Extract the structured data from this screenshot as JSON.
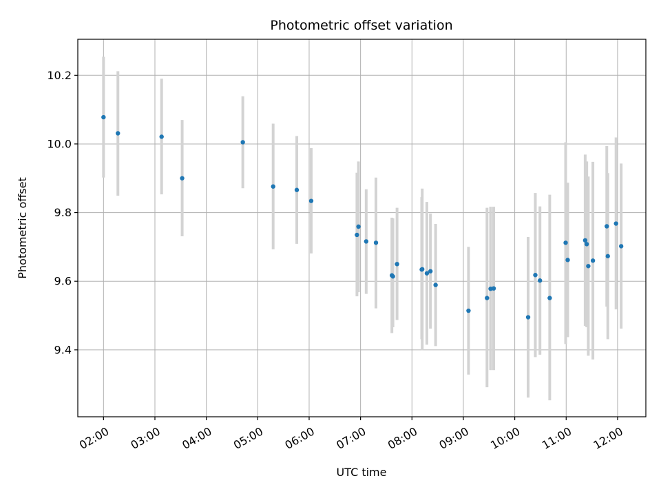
{
  "chart_data": {
    "type": "scatter",
    "title": "Photometric offset variation",
    "xlabel": "UTC time",
    "ylabel": "Photometric offset",
    "x_unit": "hours (UTC)",
    "xlim": [
      1.5,
      12.55
    ],
    "ylim": [
      9.205,
      10.305
    ],
    "x_ticks": [
      2,
      3,
      4,
      5,
      6,
      7,
      8,
      9,
      10,
      11,
      12
    ],
    "x_tick_labels": [
      "02:00",
      "03:00",
      "04:00",
      "05:00",
      "06:00",
      "07:00",
      "08:00",
      "09:00",
      "10:00",
      "11:00",
      "12:00"
    ],
    "y_ticks": [
      9.4,
      9.6,
      9.8,
      10.0,
      10.2
    ],
    "y_tick_labels": [
      "9.4",
      "9.6",
      "9.8",
      "10.0",
      "10.2"
    ],
    "grid": true,
    "legend": "none",
    "colors": {
      "point": "#1f77b4",
      "errorbar": "#d3d3d3",
      "grid": "#b0b0b0"
    },
    "points": [
      {
        "x": 2.0,
        "y": 10.078,
        "ylow": 9.902,
        "yhigh": 10.254
      },
      {
        "x": 2.28,
        "y": 10.031,
        "ylow": 9.849,
        "yhigh": 10.212
      },
      {
        "x": 3.13,
        "y": 10.021,
        "ylow": 9.853,
        "yhigh": 10.19
      },
      {
        "x": 3.53,
        "y": 9.9,
        "ylow": 9.731,
        "yhigh": 10.07
      },
      {
        "x": 4.71,
        "y": 10.005,
        "ylow": 9.871,
        "yhigh": 10.139
      },
      {
        "x": 5.3,
        "y": 9.876,
        "ylow": 9.693,
        "yhigh": 10.059
      },
      {
        "x": 5.76,
        "y": 9.866,
        "ylow": 9.709,
        "yhigh": 10.023
      },
      {
        "x": 6.04,
        "y": 9.834,
        "ylow": 9.681,
        "yhigh": 9.988
      },
      {
        "x": 6.93,
        "y": 9.735,
        "ylow": 9.556,
        "yhigh": 9.916
      },
      {
        "x": 6.96,
        "y": 9.759,
        "ylow": 9.568,
        "yhigh": 9.949
      },
      {
        "x": 7.11,
        "y": 9.716,
        "ylow": 9.563,
        "yhigh": 9.868
      },
      {
        "x": 7.3,
        "y": 9.712,
        "ylow": 9.521,
        "yhigh": 9.902
      },
      {
        "x": 7.61,
        "y": 9.617,
        "ylow": 9.449,
        "yhigh": 9.785
      },
      {
        "x": 7.63,
        "y": 9.614,
        "ylow": 9.466,
        "yhigh": 9.783
      },
      {
        "x": 7.71,
        "y": 9.65,
        "ylow": 9.487,
        "yhigh": 9.814
      },
      {
        "x": 8.19,
        "y": 9.634,
        "ylow": 9.431,
        "yhigh": 9.845
      },
      {
        "x": 8.2,
        "y": 9.635,
        "ylow": 9.399,
        "yhigh": 9.87
      },
      {
        "x": 8.29,
        "y": 9.623,
        "ylow": 9.415,
        "yhigh": 9.831
      },
      {
        "x": 8.36,
        "y": 9.629,
        "ylow": 9.462,
        "yhigh": 9.797
      },
      {
        "x": 8.46,
        "y": 9.589,
        "ylow": 9.411,
        "yhigh": 9.767
      },
      {
        "x": 9.1,
        "y": 9.514,
        "ylow": 9.328,
        "yhigh": 9.7
      },
      {
        "x": 9.46,
        "y": 9.551,
        "ylow": 9.291,
        "yhigh": 9.814
      },
      {
        "x": 9.53,
        "y": 9.578,
        "ylow": 9.341,
        "yhigh": 9.817
      },
      {
        "x": 9.59,
        "y": 9.579,
        "ylow": 9.341,
        "yhigh": 9.817
      },
      {
        "x": 10.26,
        "y": 9.495,
        "ylow": 9.261,
        "yhigh": 9.729
      },
      {
        "x": 10.4,
        "y": 9.618,
        "ylow": 9.379,
        "yhigh": 9.857
      },
      {
        "x": 10.49,
        "y": 9.602,
        "ylow": 9.386,
        "yhigh": 9.818
      },
      {
        "x": 10.68,
        "y": 9.551,
        "ylow": 9.253,
        "yhigh": 9.852
      },
      {
        "x": 10.99,
        "y": 9.712,
        "ylow": 9.417,
        "yhigh": 10.005
      },
      {
        "x": 11.03,
        "y": 9.662,
        "ylow": 9.437,
        "yhigh": 9.887
      },
      {
        "x": 11.37,
        "y": 9.719,
        "ylow": 9.47,
        "yhigh": 9.969
      },
      {
        "x": 11.4,
        "y": 9.708,
        "ylow": 9.466,
        "yhigh": 9.949
      },
      {
        "x": 11.43,
        "y": 9.644,
        "ylow": 9.383,
        "yhigh": 9.905
      },
      {
        "x": 11.52,
        "y": 9.66,
        "ylow": 9.372,
        "yhigh": 9.948
      },
      {
        "x": 11.79,
        "y": 9.76,
        "ylow": 9.526,
        "yhigh": 9.994
      },
      {
        "x": 11.81,
        "y": 9.673,
        "ylow": 9.431,
        "yhigh": 9.915
      },
      {
        "x": 11.97,
        "y": 9.768,
        "ylow": 9.518,
        "yhigh": 10.019
      },
      {
        "x": 12.07,
        "y": 9.702,
        "ylow": 9.462,
        "yhigh": 9.943
      }
    ]
  }
}
